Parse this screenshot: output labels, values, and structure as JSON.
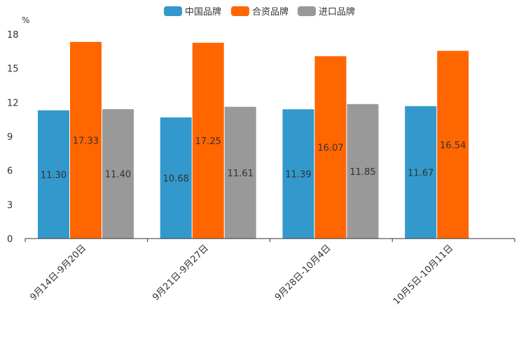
{
  "chart_data": {
    "type": "bar",
    "unit": "%",
    "categories": [
      "9月14日-9月20日",
      "9月21日-9月27日",
      "9月28日-10月4日",
      "10月5日-10月11日"
    ],
    "series": [
      {
        "name": "中国品牌",
        "color": "#3399cc",
        "values": [
          11.3,
          10.68,
          11.39,
          11.67
        ],
        "labels": [
          "11.30",
          "10.68",
          "11.39",
          "11.67"
        ]
      },
      {
        "name": "合资品牌",
        "color": "#ff6600",
        "values": [
          17.33,
          17.25,
          16.07,
          16.54
        ],
        "labels": [
          "17.33",
          "17.25",
          "16.07",
          "16.54"
        ]
      },
      {
        "name": "进口品牌",
        "color": "#999999",
        "values": [
          11.4,
          11.61,
          11.85,
          null
        ],
        "labels": [
          "11.40",
          "11.61",
          "11.85",
          null
        ]
      }
    ],
    "ylim": [
      0,
      18
    ],
    "yticks": [
      "0",
      "3",
      "6",
      "9",
      "12",
      "15",
      "18"
    ],
    "legend_position": "top-center"
  }
}
